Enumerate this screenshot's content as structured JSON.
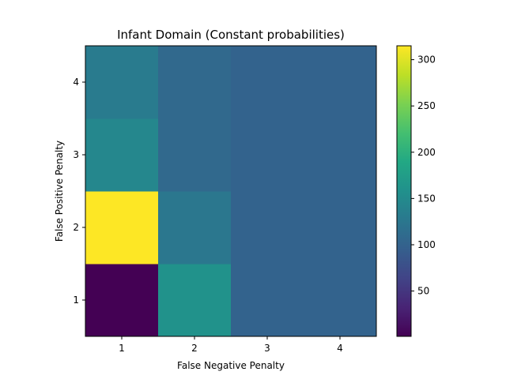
{
  "chart_data": {
    "type": "heatmap",
    "title": "Infant Domain (Constant probabilities)",
    "xlabel": "False Negative Penalty",
    "ylabel": "False Positive Penalty",
    "x_categories": [
      "1",
      "2",
      "3",
      "4"
    ],
    "y_categories": [
      "1",
      "2",
      "3",
      "4"
    ],
    "values": [
      [
        1,
        160,
        100,
        100
      ],
      [
        315,
        125,
        100,
        100
      ],
      [
        145,
        108,
        100,
        100
      ],
      [
        130,
        108,
        100,
        100
      ]
    ],
    "color_range": [
      1,
      315
    ],
    "colormap": "viridis",
    "colorbar_ticks": [
      "50",
      "100",
      "150",
      "200",
      "250",
      "300"
    ],
    "grid": false
  }
}
